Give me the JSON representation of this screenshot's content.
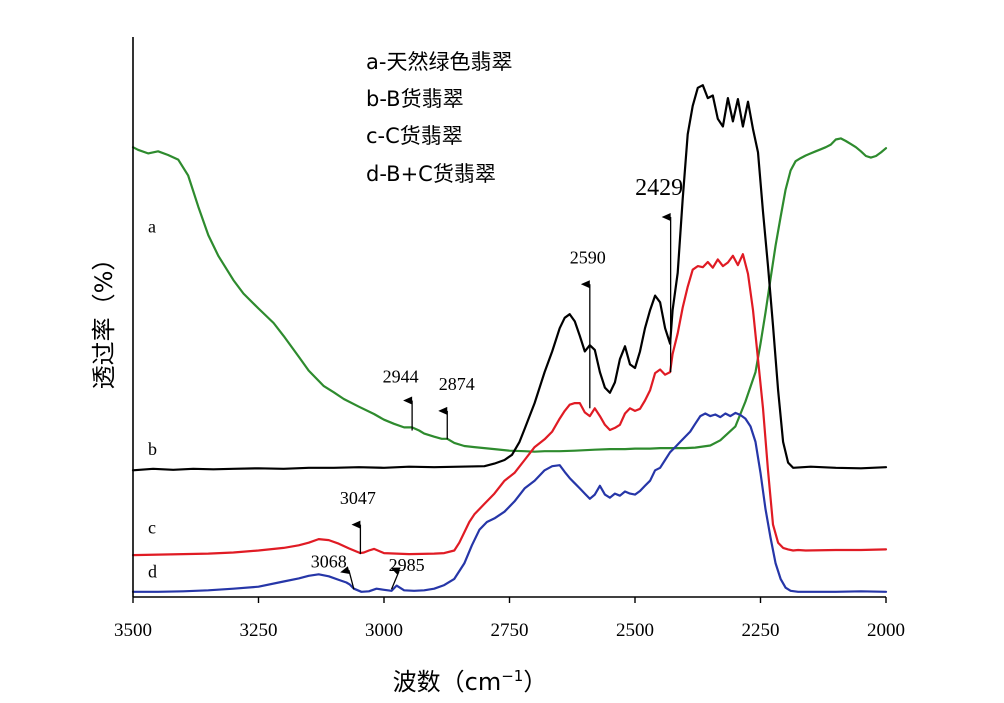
{
  "chart_data": {
    "type": "line",
    "title": "",
    "xlabel": "波数（cm",
    "xlabel_sup": "−1",
    "xlabel_close": "）",
    "ylabel": "透过率（%）",
    "xlim": [
      3500,
      2000
    ],
    "x_reversed": true,
    "ylim": [
      0,
      100
    ],
    "y_ticks_shown": false,
    "grid": false,
    "xticks": [
      3500,
      3250,
      3000,
      2750,
      2500,
      2250,
      2000
    ],
    "xtick_labels": [
      "3500",
      "3250",
      "3000",
      "2750",
      "2500",
      "2250",
      "2000"
    ],
    "legend": {
      "placement": "top-left",
      "entries": [
        "a-天然绿色翡翠",
        "b-B货翡翠",
        "c-C货翡翠",
        "d-B+C货翡翠"
      ]
    },
    "series": [
      {
        "label": "a",
        "color": "#2e8b2e",
        "x": [
          3500,
          3490,
          3470,
          3450,
          3430,
          3410,
          3390,
          3370,
          3350,
          3330,
          3300,
          3280,
          3250,
          3220,
          3200,
          3170,
          3150,
          3120,
          3100,
          3080,
          3050,
          3020,
          3000,
          2980,
          2960,
          2944,
          2930,
          2920,
          2900,
          2885,
          2874,
          2860,
          2840,
          2820,
          2800,
          2780,
          2750,
          2720,
          2700,
          2680,
          2650,
          2620,
          2600,
          2580,
          2550,
          2520,
          2500,
          2470,
          2450,
          2420,
          2400,
          2380,
          2350,
          2330,
          2300,
          2280,
          2260,
          2250,
          2240,
          2230,
          2220,
          2210,
          2200,
          2190,
          2180,
          2170,
          2160,
          2150,
          2140,
          2130,
          2120,
          2110,
          2100,
          2090,
          2080,
          2070,
          2060,
          2050,
          2040,
          2030,
          2020,
          2010,
          2000
        ],
        "y": [
          87.0,
          86.5,
          85.8,
          86.2,
          85.5,
          84.6,
          81.5,
          75.5,
          70.0,
          66.0,
          61.3,
          58.7,
          55.8,
          53.0,
          50.5,
          46.5,
          43.8,
          40.8,
          39.6,
          38.3,
          36.8,
          35.4,
          34.3,
          33.5,
          32.8,
          32.8,
          32.2,
          31.6,
          31.0,
          30.6,
          30.6,
          29.8,
          29.2,
          29.0,
          28.8,
          28.6,
          28.3,
          28.2,
          28.1,
          28.2,
          28.2,
          28.3,
          28.4,
          28.5,
          28.6,
          28.6,
          28.7,
          28.7,
          28.8,
          28.8,
          28.8,
          28.9,
          29.3,
          30.3,
          33.0,
          37.8,
          43.5,
          49.0,
          55.0,
          61.5,
          68.0,
          73.5,
          78.8,
          82.5,
          84.3,
          84.9,
          85.4,
          85.8,
          86.2,
          86.6,
          87.0,
          87.5,
          88.5,
          88.7,
          88.2,
          87.6,
          87.0,
          86.2,
          85.3,
          85.0,
          85.3,
          86.0,
          86.8
        ]
      },
      {
        "label": "b",
        "color": "#000000",
        "x": [
          3500,
          3460,
          3420,
          3380,
          3340,
          3300,
          3250,
          3200,
          3150,
          3100,
          3050,
          3000,
          2950,
          2900,
          2850,
          2800,
          2780,
          2760,
          2745,
          2730,
          2720,
          2700,
          2680,
          2665,
          2650,
          2640,
          2630,
          2620,
          2610,
          2600,
          2590,
          2580,
          2570,
          2560,
          2550,
          2540,
          2530,
          2520,
          2510,
          2500,
          2490,
          2480,
          2470,
          2460,
          2450,
          2440,
          2430,
          2425,
          2415,
          2405,
          2395,
          2385,
          2375,
          2365,
          2355,
          2345,
          2335,
          2325,
          2315,
          2305,
          2295,
          2285,
          2275,
          2265,
          2255,
          2245,
          2235,
          2225,
          2215,
          2205,
          2195,
          2185,
          2150,
          2100,
          2050,
          2000
        ],
        "y": [
          24.5,
          24.8,
          24.6,
          24.8,
          24.7,
          24.8,
          24.9,
          24.8,
          25.0,
          25.0,
          25.1,
          25.0,
          25.2,
          25.1,
          25.2,
          25.3,
          25.8,
          26.5,
          27.5,
          30.0,
          32.5,
          37.5,
          43.5,
          47.5,
          52.0,
          54.0,
          54.7,
          53.3,
          50.5,
          47.5,
          48.7,
          47.8,
          43.5,
          40.5,
          39.5,
          41.5,
          46.0,
          48.5,
          45.0,
          44.3,
          47.5,
          52.0,
          55.5,
          58.3,
          57.0,
          52.0,
          49.0,
          55.5,
          62.7,
          77.0,
          89.5,
          95.0,
          98.5,
          99.0,
          96.5,
          97.0,
          92.5,
          91.0,
          96.5,
          92.0,
          96.3,
          91.0,
          95.8,
          90.5,
          86.0,
          74.5,
          64.0,
          52.5,
          40.0,
          30.0,
          26.0,
          25.0,
          25.2,
          25.0,
          24.9,
          25.1
        ]
      },
      {
        "label": "c",
        "color": "#e01b24",
        "x": [
          3500,
          3450,
          3400,
          3350,
          3300,
          3250,
          3200,
          3170,
          3150,
          3130,
          3110,
          3090,
          3070,
          3055,
          3047,
          3040,
          3030,
          3020,
          3010,
          3000,
          2950,
          2900,
          2880,
          2860,
          2850,
          2840,
          2830,
          2820,
          2800,
          2780,
          2760,
          2740,
          2720,
          2700,
          2680,
          2665,
          2650,
          2640,
          2630,
          2620,
          2610,
          2600,
          2590,
          2580,
          2570,
          2560,
          2550,
          2540,
          2530,
          2520,
          2510,
          2500,
          2490,
          2480,
          2470,
          2460,
          2450,
          2440,
          2430,
          2425,
          2415,
          2405,
          2395,
          2385,
          2375,
          2365,
          2355,
          2345,
          2335,
          2325,
          2315,
          2305,
          2295,
          2285,
          2275,
          2265,
          2255,
          2245,
          2235,
          2225,
          2215,
          2205,
          2195,
          2185,
          2175,
          2160,
          2100,
          2050,
          2000
        ],
        "y": [
          8.1,
          8.2,
          8.3,
          8.4,
          8.6,
          9.0,
          9.5,
          10.0,
          10.5,
          11.2,
          11.0,
          10.3,
          9.4,
          8.8,
          8.5,
          8.6,
          9.0,
          9.3,
          8.9,
          8.5,
          8.3,
          8.4,
          8.5,
          9.0,
          10.5,
          12.5,
          14.5,
          16.0,
          18.0,
          20.0,
          22.5,
          24.0,
          26.5,
          29.0,
          30.5,
          32.0,
          34.5,
          36.0,
          37.2,
          37.5,
          37.5,
          35.7,
          35.0,
          36.5,
          35.0,
          33.3,
          32.3,
          32.7,
          33.3,
          35.5,
          36.5,
          36.0,
          36.4,
          38.0,
          40.0,
          43.3,
          44.0,
          43.0,
          43.5,
          47.0,
          51.0,
          56.0,
          60.0,
          63.3,
          64.0,
          63.8,
          64.8,
          63.7,
          65.3,
          64.0,
          64.7,
          66.0,
          64.2,
          66.3,
          62.5,
          55.5,
          46.0,
          36.5,
          24.5,
          14.0,
          10.5,
          9.5,
          9.2,
          9.0,
          9.1,
          9.0,
          9.1,
          9.1,
          9.2
        ]
      },
      {
        "label": "d",
        "color": "#2636a8",
        "x": [
          3500,
          3450,
          3400,
          3350,
          3300,
          3250,
          3200,
          3170,
          3150,
          3130,
          3110,
          3090,
          3075,
          3068,
          3060,
          3045,
          3030,
          3015,
          3000,
          2985,
          2975,
          2960,
          2940,
          2920,
          2900,
          2880,
          2860,
          2840,
          2825,
          2810,
          2795,
          2780,
          2760,
          2740,
          2720,
          2700,
          2680,
          2665,
          2650,
          2640,
          2630,
          2620,
          2610,
          2600,
          2590,
          2580,
          2570,
          2560,
          2550,
          2540,
          2530,
          2520,
          2510,
          2500,
          2490,
          2480,
          2470,
          2460,
          2450,
          2440,
          2430,
          2420,
          2410,
          2400,
          2390,
          2380,
          2370,
          2360,
          2350,
          2340,
          2330,
          2320,
          2310,
          2300,
          2290,
          2280,
          2270,
          2260,
          2250,
          2240,
          2230,
          2220,
          2210,
          2200,
          2190,
          2175,
          2150,
          2100,
          2050,
          2000
        ],
        "y": [
          1.0,
          1.0,
          1.1,
          1.3,
          1.6,
          2.0,
          3.0,
          3.6,
          4.1,
          4.4,
          4.0,
          3.3,
          2.8,
          2.4,
          1.6,
          1.0,
          1.1,
          1.6,
          1.4,
          1.2,
          2.2,
          1.3,
          1.2,
          1.3,
          1.6,
          2.3,
          3.5,
          6.5,
          10.0,
          13.0,
          14.5,
          15.2,
          16.5,
          18.5,
          21.0,
          22.5,
          24.5,
          25.3,
          25.5,
          24.2,
          23.0,
          22.0,
          21.0,
          20.0,
          19.0,
          19.8,
          21.5,
          19.8,
          19.2,
          20.0,
          19.6,
          20.4,
          20.0,
          19.8,
          20.5,
          21.5,
          22.5,
          24.5,
          25.0,
          26.5,
          28.0,
          29.0,
          30.0,
          31.0,
          32.0,
          33.5,
          35.0,
          35.5,
          35.0,
          35.3,
          34.8,
          35.5,
          35.0,
          35.6,
          35.2,
          34.5,
          33.0,
          30.0,
          24.0,
          17.0,
          11.5,
          6.5,
          3.5,
          1.8,
          1.2,
          1.0,
          1.0,
          1.0,
          1.1,
          1.0
        ]
      }
    ],
    "curve_labels": [
      {
        "text": "a",
        "x": 3470,
        "y": 70.5
      },
      {
        "text": "b",
        "x": 3470,
        "y": 27.5
      },
      {
        "text": "c",
        "x": 3470,
        "y": 12.3
      },
      {
        "text": "d",
        "x": 3470,
        "y": 3.8
      }
    ],
    "annotations": [
      {
        "text": "2944",
        "text_x": 2967,
        "text_y": 41.5,
        "arrow_from": [
          2944,
          32.2
        ],
        "arrow_to": [
          2944,
          38.0
        ],
        "big": false
      },
      {
        "text": "2874",
        "text_x": 2855,
        "text_y": 40.0,
        "arrow_from": [
          2874,
          30.5
        ],
        "arrow_to": [
          2874,
          36.0
        ],
        "big": false
      },
      {
        "text": "2590",
        "text_x": 2594,
        "text_y": 64.5,
        "arrow_from": [
          2590,
          36.5
        ],
        "arrow_to": [
          2590,
          60.5
        ],
        "big": false,
        "large": true
      },
      {
        "text": "2429",
        "text_x": 2452,
        "text_y": 77.8,
        "arrow_from": [
          2429,
          43.5
        ],
        "arrow_to": [
          2429,
          73.5
        ],
        "big": true
      },
      {
        "text": "3047",
        "text_x": 3052,
        "text_y": 18.0,
        "arrow_from": [
          3047,
          8.3
        ],
        "arrow_to": [
          3047,
          14.0
        ],
        "big": false
      },
      {
        "text": "3068",
        "text_x": 3110,
        "text_y": 5.7,
        "arrow_from": [
          3060,
          1.5
        ],
        "arrow_to": [
          3070,
          5.2
        ],
        "big": false
      },
      {
        "text": "2985",
        "text_x": 2955,
        "text_y": 5.0,
        "arrow_from": [
          2985,
          1.5
        ],
        "arrow_to": [
          2970,
          5.0
        ],
        "big": false
      }
    ]
  }
}
